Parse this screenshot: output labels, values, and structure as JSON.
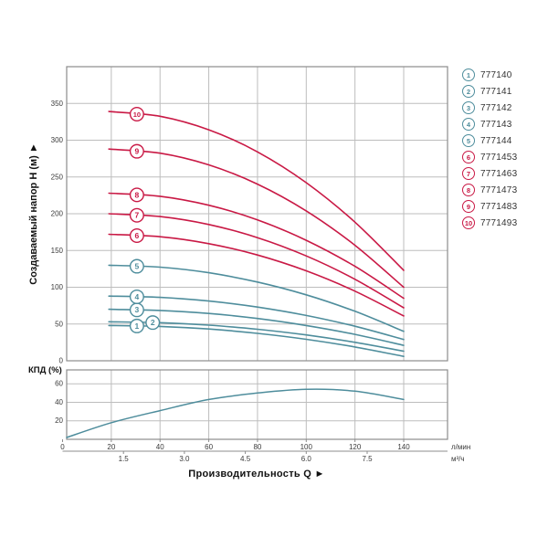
{
  "colors": {
    "teal": "#4E8D9C",
    "red": "#C91945",
    "grid": "#BDBDBD",
    "border": "#8C8C8C",
    "tick_text": "#3A3A3A",
    "label_text": "#111111"
  },
  "labels": {
    "y_axis_main": "Создаваемый напор H (м)  ►",
    "x_axis": "Производительность Q  ►",
    "kpd": "КПД (%)",
    "unit_lmin": "л/мин",
    "unit_m3h": "м³/ч"
  },
  "legend": {
    "items": [
      {
        "num": "1",
        "code": "777140",
        "color": "teal"
      },
      {
        "num": "2",
        "code": "777141",
        "color": "teal"
      },
      {
        "num": "3",
        "code": "777142",
        "color": "teal"
      },
      {
        "num": "4",
        "code": "777143",
        "color": "teal"
      },
      {
        "num": "5",
        "code": "777144",
        "color": "teal"
      },
      {
        "num": "6",
        "code": "7771453",
        "color": "red"
      },
      {
        "num": "7",
        "code": "7771463",
        "color": "red"
      },
      {
        "num": "8",
        "code": "7771473",
        "color": "red"
      },
      {
        "num": "9",
        "code": "7771483",
        "color": "red"
      },
      {
        "num": "10",
        "code": "7771493",
        "color": "red"
      }
    ]
  },
  "chart_data": [
    {
      "type": "line",
      "title": "Pump head curves",
      "ylabel": "Создаваемый напор H (м)",
      "xlabel": "Производительность Q, л/мин",
      "ylim": [
        0,
        400
      ],
      "y_ticks": [
        0,
        50,
        100,
        150,
        200,
        250,
        300,
        350
      ],
      "x_ticks": [
        0,
        20,
        40,
        60,
        80,
        100,
        120,
        140
      ],
      "grid": true,
      "legend_position": "top-right",
      "x": [
        19,
        40,
        60,
        80,
        100,
        120,
        140
      ],
      "series": [
        {
          "num": "1",
          "name": "777140",
          "color": "teal",
          "marker_q": 30.5,
          "values": [
            48,
            46.7,
            43.2,
            37.3,
            29.2,
            18.7,
            6
          ]
        },
        {
          "num": "2",
          "name": "777141",
          "color": "teal",
          "marker_q": 37,
          "values": [
            53,
            51.8,
            48.4,
            42.8,
            35.1,
            25.1,
            13
          ]
        },
        {
          "num": "3",
          "name": "777142",
          "color": "teal",
          "marker_q": 30.5,
          "values": [
            70,
            68.5,
            64.4,
            57.5,
            48.0,
            35.9,
            21
          ]
        },
        {
          "num": "4",
          "name": "777143",
          "color": "teal",
          "marker_q": 30.5,
          "values": [
            88,
            86.2,
            81.2,
            73.0,
            61.6,
            46.9,
            29
          ]
        },
        {
          "num": "5",
          "name": "777144",
          "color": "teal",
          "marker_q": 30.5,
          "values": [
            130,
            127.3,
            119.7,
            107.1,
            89.7,
            67.3,
            40
          ]
        },
        {
          "num": "6",
          "name": "7771453",
          "color": "red",
          "marker_q": 30.5,
          "values": [
            172,
            168.7,
            159.3,
            143.8,
            122.3,
            94.7,
            61
          ]
        },
        {
          "num": "7",
          "name": "7771463",
          "color": "red",
          "marker_q": 30.5,
          "values": [
            200,
            196.1,
            185.3,
            167.5,
            142.6,
            110.8,
            72
          ]
        },
        {
          "num": "8",
          "name": "7771473",
          "color": "red",
          "marker_q": 30.5,
          "values": [
            228,
            223.7,
            211.6,
            191.7,
            163.9,
            128.4,
            85
          ]
        },
        {
          "num": "9",
          "name": "7771483",
          "color": "red",
          "marker_q": 30.5,
          "values": [
            288,
            282.3,
            266.4,
            240.2,
            203.8,
            157.0,
            100
          ]
        },
        {
          "num": "10",
          "name": "7771493",
          "color": "red",
          "marker_q": 30.5,
          "values": [
            339,
            332.5,
            314.2,
            284.1,
            242.2,
            188.5,
            123
          ]
        }
      ]
    },
    {
      "type": "line",
      "title": "Efficiency curve",
      "ylabel": "КПД (%)",
      "ylim": [
        0,
        75
      ],
      "y_ticks": [
        20,
        40,
        60
      ],
      "x_ticks": [
        0,
        20,
        40,
        60,
        80,
        100,
        120,
        140
      ],
      "x2_ticks_m3h": [
        "1.5",
        "3.0",
        "4.5",
        "6.0",
        "7.5"
      ],
      "grid": true,
      "x": [
        0,
        20,
        40,
        60,
        80,
        100,
        120,
        140
      ],
      "series": [
        {
          "name": "КПД",
          "color": "teal",
          "values": [
            2,
            18,
            31,
            43,
            50,
            54,
            52,
            43
          ]
        }
      ]
    }
  ]
}
